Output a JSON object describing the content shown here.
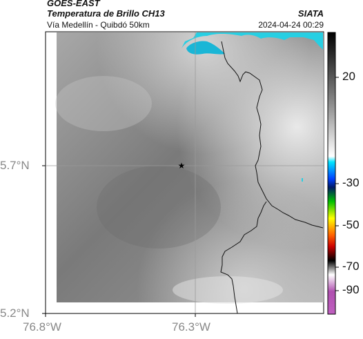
{
  "header": {
    "satellite": "GOES-EAST",
    "product": "Temperatura de Brillo CH13",
    "route": "Vía Medellín - Quibdó 50km",
    "agency": "SIATA",
    "datetime": "2024-04-24 00:29"
  },
  "axes": {
    "lat_ticks": [
      "5.7°N",
      "5.2°N"
    ],
    "lon_ticks": [
      "76.8°W",
      "76.3°W"
    ]
  },
  "colorbar": {
    "ticks": [
      "20",
      "-30",
      "-50",
      "-70",
      "-90"
    ]
  },
  "marker": {
    "symbol": "★"
  },
  "colors": {
    "cloud_cold": "#2ad0e6",
    "land_gray": "#8a8a8a",
    "border": "#000000",
    "grid": "#9a9a9a"
  }
}
